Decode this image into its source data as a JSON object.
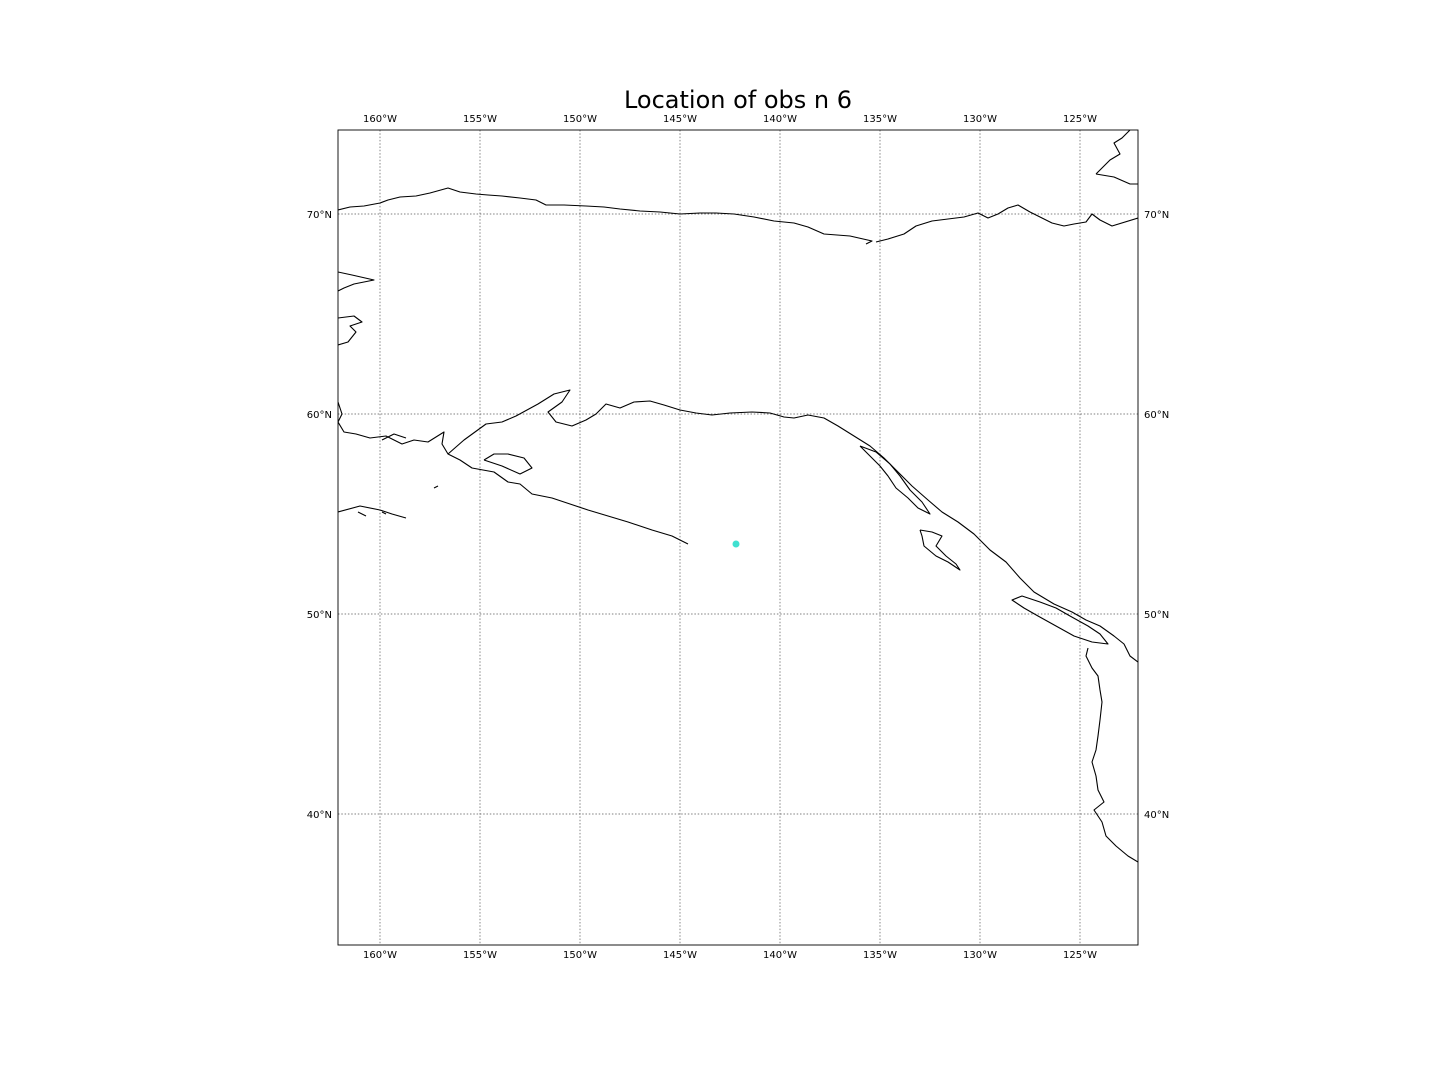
{
  "title": "Location of obs n 6",
  "extent": {
    "lon_min": -162.1,
    "lon_max": -122.1,
    "lat_min": 33.45,
    "lat_max": 74.2
  },
  "lon_ticks": [
    {
      "value": -160,
      "label": "160°W"
    },
    {
      "value": -155,
      "label": "155°W"
    },
    {
      "value": -150,
      "label": "150°W"
    },
    {
      "value": -145,
      "label": "145°W"
    },
    {
      "value": -140,
      "label": "140°W"
    },
    {
      "value": -135,
      "label": "135°W"
    },
    {
      "value": -130,
      "label": "130°W"
    },
    {
      "value": -125,
      "label": "125°W"
    }
  ],
  "lat_ticks": [
    {
      "value": 70,
      "label": "70°N"
    },
    {
      "value": 60,
      "label": "60°N"
    },
    {
      "value": 50,
      "label": "50°N"
    },
    {
      "value": 40,
      "label": "40°N"
    }
  ],
  "observation": {
    "lon": -142.2,
    "lat": 53.5,
    "color": "#40e0d0"
  },
  "coastlines": [
    [
      [
        -162.1,
        70.2
      ],
      [
        -161.5,
        70.35
      ],
      [
        -160.8,
        70.4
      ],
      [
        -160.0,
        70.55
      ],
      [
        -159.6,
        70.7
      ],
      [
        -159.0,
        70.85
      ],
      [
        -158.2,
        70.9
      ],
      [
        -157.5,
        71.05
      ],
      [
        -156.6,
        71.3
      ],
      [
        -156.0,
        71.1
      ],
      [
        -155.2,
        71.0
      ],
      [
        -154.6,
        70.95
      ],
      [
        -153.9,
        70.9
      ],
      [
        -153.0,
        70.8
      ],
      [
        -152.2,
        70.7
      ],
      [
        -151.7,
        70.45
      ],
      [
        -150.8,
        70.45
      ],
      [
        -149.7,
        70.4
      ],
      [
        -148.8,
        70.35
      ],
      [
        -148.0,
        70.25
      ],
      [
        -147.0,
        70.15
      ],
      [
        -146.0,
        70.1
      ],
      [
        -145.0,
        70.0
      ],
      [
        -144.0,
        70.05
      ],
      [
        -143.2,
        70.05
      ],
      [
        -142.3,
        70.0
      ],
      [
        -141.3,
        69.85
      ],
      [
        -140.3,
        69.65
      ],
      [
        -139.3,
        69.55
      ],
      [
        -138.6,
        69.35
      ],
      [
        -137.8,
        69.0
      ],
      [
        -136.5,
        68.9
      ],
      [
        -135.4,
        68.65
      ],
      [
        -135.7,
        68.5
      ]
    ],
    [
      [
        -135.2,
        68.6
      ],
      [
        -134.6,
        68.75
      ],
      [
        -133.8,
        69.0
      ],
      [
        -133.2,
        69.4
      ],
      [
        -132.4,
        69.65
      ],
      [
        -131.6,
        69.75
      ],
      [
        -130.8,
        69.85
      ],
      [
        -130.1,
        70.05
      ],
      [
        -129.6,
        69.8
      ],
      [
        -129.1,
        70.0
      ],
      [
        -128.6,
        70.3
      ],
      [
        -128.1,
        70.45
      ],
      [
        -127.5,
        70.1
      ],
      [
        -127.0,
        69.85
      ],
      [
        -126.4,
        69.55
      ],
      [
        -125.8,
        69.4
      ],
      [
        -125.3,
        69.5
      ],
      [
        -124.7,
        69.6
      ],
      [
        -124.4,
        70.0
      ],
      [
        -124.0,
        69.7
      ],
      [
        -123.4,
        69.4
      ],
      [
        -122.1,
        69.8
      ]
    ],
    [
      [
        -124.2,
        72.0
      ],
      [
        -123.5,
        72.7
      ],
      [
        -123.0,
        73.0
      ],
      [
        -123.3,
        73.55
      ],
      [
        -122.9,
        73.8
      ],
      [
        -122.5,
        74.2
      ]
    ],
    [
      [
        -124.2,
        72.0
      ],
      [
        -123.3,
        71.85
      ],
      [
        -122.5,
        71.5
      ],
      [
        -122.1,
        71.5
      ]
    ],
    [
      [
        -162.1,
        67.1
      ],
      [
        -161.4,
        66.95
      ],
      [
        -160.3,
        66.7
      ],
      [
        -161.3,
        66.5
      ],
      [
        -161.8,
        66.3
      ],
      [
        -162.1,
        66.15
      ]
    ],
    [
      [
        -162.1,
        64.8
      ],
      [
        -161.3,
        64.9
      ],
      [
        -160.9,
        64.6
      ],
      [
        -161.5,
        64.4
      ],
      [
        -161.2,
        64.1
      ],
      [
        -161.6,
        63.6
      ],
      [
        -162.1,
        63.45
      ]
    ],
    [
      [
        -162.1,
        60.6
      ],
      [
        -161.9,
        60.0
      ],
      [
        -162.1,
        59.6
      ],
      [
        -161.8,
        59.1
      ],
      [
        -161.2,
        59.0
      ],
      [
        -160.5,
        58.8
      ],
      [
        -159.7,
        58.9
      ],
      [
        -158.9,
        58.5
      ],
      [
        -158.3,
        58.7
      ],
      [
        -157.6,
        58.6
      ],
      [
        -156.8,
        59.1
      ],
      [
        -156.9,
        58.5
      ],
      [
        -156.6,
        58.0
      ],
      [
        -156.0,
        57.7
      ],
      [
        -155.4,
        57.3
      ],
      [
        -154.3,
        57.1
      ],
      [
        -153.6,
        56.6
      ],
      [
        -153.0,
        56.5
      ],
      [
        -152.4,
        56.0
      ],
      [
        -151.4,
        55.8
      ],
      [
        -150.5,
        55.5
      ],
      [
        -149.6,
        55.2
      ],
      [
        -148.6,
        54.9
      ],
      [
        -147.6,
        54.6
      ],
      [
        -146.4,
        54.2
      ],
      [
        -145.4,
        53.9
      ],
      [
        -144.6,
        53.5
      ]
    ],
    [
      [
        -162.1,
        55.1
      ],
      [
        -161.0,
        55.4
      ],
      [
        -160.0,
        55.2
      ],
      [
        -159.4,
        55.0
      ],
      [
        -158.7,
        54.8
      ]
    ],
    [
      [
        -156.6,
        58.0
      ],
      [
        -155.8,
        58.7
      ],
      [
        -154.7,
        59.5
      ],
      [
        -153.9,
        59.6
      ],
      [
        -153.2,
        59.9
      ],
      [
        -152.1,
        60.5
      ],
      [
        -151.3,
        61.0
      ],
      [
        -150.5,
        61.2
      ],
      [
        -150.9,
        60.6
      ],
      [
        -151.6,
        60.1
      ],
      [
        -151.2,
        59.6
      ],
      [
        -150.4,
        59.4
      ],
      [
        -149.7,
        59.7
      ],
      [
        -149.2,
        60.0
      ],
      [
        -148.7,
        60.5
      ],
      [
        -148.0,
        60.3
      ],
      [
        -147.3,
        60.6
      ],
      [
        -146.5,
        60.65
      ],
      [
        -145.8,
        60.45
      ],
      [
        -145.0,
        60.2
      ],
      [
        -144.2,
        60.05
      ],
      [
        -143.4,
        59.95
      ],
      [
        -142.5,
        60.05
      ],
      [
        -141.4,
        60.1
      ],
      [
        -140.5,
        60.05
      ],
      [
        -139.8,
        59.85
      ],
      [
        -139.3,
        59.8
      ],
      [
        -138.6,
        59.95
      ],
      [
        -137.8,
        59.8
      ],
      [
        -137.1,
        59.4
      ],
      [
        -136.3,
        58.9
      ],
      [
        -135.5,
        58.4
      ],
      [
        -134.8,
        57.8
      ],
      [
        -134.0,
        57.0
      ],
      [
        -133.4,
        56.4
      ],
      [
        -132.6,
        55.7
      ],
      [
        -131.9,
        55.1
      ],
      [
        -131.1,
        54.6
      ],
      [
        -130.3,
        54.0
      ],
      [
        -129.5,
        53.2
      ],
      [
        -128.7,
        52.6
      ],
      [
        -128.0,
        51.8
      ],
      [
        -127.3,
        51.1
      ],
      [
        -126.3,
        50.5
      ],
      [
        -125.4,
        50.1
      ],
      [
        -124.7,
        49.7
      ],
      [
        -124.0,
        49.4
      ],
      [
        -123.3,
        48.9
      ],
      [
        -122.8,
        48.5
      ],
      [
        -122.5,
        47.9
      ],
      [
        -122.1,
        47.6
      ]
    ],
    [
      [
        -125.5,
        49.9
      ],
      [
        -124.6,
        49.4
      ],
      [
        -124.0,
        49.0
      ],
      [
        -123.6,
        48.5
      ],
      [
        -124.4,
        48.6
      ],
      [
        -125.3,
        48.9
      ],
      [
        -126.2,
        49.4
      ],
      [
        -127.1,
        49.9
      ],
      [
        -127.8,
        50.3
      ],
      [
        -128.4,
        50.7
      ],
      [
        -127.9,
        50.9
      ],
      [
        -127.0,
        50.6
      ],
      [
        -126.2,
        50.3
      ],
      [
        -125.5,
        49.9
      ]
    ],
    [
      [
        -124.6,
        48.3
      ],
      [
        -124.7,
        47.9
      ],
      [
        -124.4,
        47.3
      ],
      [
        -124.1,
        46.9
      ],
      [
        -124.0,
        46.2
      ],
      [
        -123.9,
        45.6
      ],
      [
        -124.0,
        44.7
      ],
      [
        -124.1,
        43.9
      ],
      [
        -124.2,
        43.2
      ],
      [
        -124.4,
        42.6
      ],
      [
        -124.2,
        41.9
      ],
      [
        -124.1,
        41.2
      ],
      [
        -123.8,
        40.6
      ],
      [
        -124.3,
        40.2
      ],
      [
        -123.9,
        39.6
      ],
      [
        -123.7,
        38.9
      ],
      [
        -123.2,
        38.4
      ],
      [
        -122.6,
        37.9
      ],
      [
        -122.1,
        37.6
      ]
    ],
    [
      [
        -133.0,
        54.2
      ],
      [
        -132.4,
        54.1
      ],
      [
        -131.9,
        53.9
      ],
      [
        -132.2,
        53.4
      ],
      [
        -131.7,
        52.9
      ],
      [
        -131.2,
        52.5
      ],
      [
        -131.0,
        52.2
      ],
      [
        -131.6,
        52.6
      ],
      [
        -132.2,
        52.9
      ],
      [
        -132.8,
        53.4
      ],
      [
        -132.9,
        53.9
      ],
      [
        -133.0,
        54.2
      ]
    ],
    [
      [
        -136.0,
        58.4
      ],
      [
        -135.5,
        57.9
      ],
      [
        -135.0,
        57.4
      ],
      [
        -134.6,
        56.9
      ],
      [
        -134.2,
        56.3
      ],
      [
        -133.6,
        55.8
      ],
      [
        -133.1,
        55.3
      ],
      [
        -132.5,
        55.0
      ],
      [
        -132.9,
        55.6
      ],
      [
        -133.5,
        56.2
      ],
      [
        -134.0,
        56.9
      ],
      [
        -134.5,
        57.5
      ],
      [
        -135.2,
        58.1
      ],
      [
        -136.0,
        58.4
      ]
    ],
    [
      [
        -154.8,
        57.7
      ],
      [
        -153.9,
        57.4
      ],
      [
        -153.0,
        57.0
      ],
      [
        -152.4,
        57.3
      ],
      [
        -152.8,
        57.8
      ],
      [
        -153.6,
        58.0
      ],
      [
        -154.3,
        58.0
      ],
      [
        -154.8,
        57.7
      ]
    ],
    [
      [
        -159.9,
        58.7
      ],
      [
        -159.3,
        59.0
      ],
      [
        -158.7,
        58.8
      ]
    ],
    [
      [
        -157.3,
        56.3
      ],
      [
        -157.1,
        56.4
      ]
    ],
    [
      [
        -159.9,
        55.1
      ],
      [
        -159.7,
        55.0
      ]
    ],
    [
      [
        -161.1,
        55.1
      ],
      [
        -160.7,
        54.9
      ]
    ]
  ]
}
